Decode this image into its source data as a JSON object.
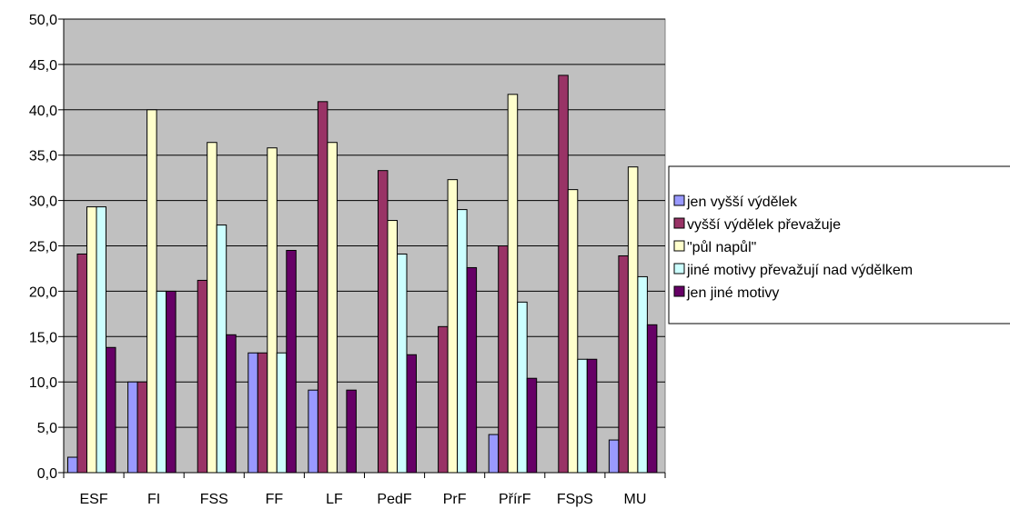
{
  "chart_data": {
    "type": "bar",
    "categories": [
      "ESF",
      "FI",
      "FSS",
      "FF",
      "LF",
      "PedF",
      "PrF",
      "PřírF",
      "FSpS",
      "MU"
    ],
    "series": [
      {
        "name": "jen vyšší výdělek",
        "color": "#9999ff",
        "values": [
          1.7,
          10.0,
          0.0,
          13.2,
          9.1,
          0.0,
          0.0,
          4.2,
          0.0,
          3.6
        ]
      },
      {
        "name": "vyšší výdělek převažuje",
        "color": "#993366",
        "values": [
          24.1,
          10.0,
          21.2,
          13.2,
          40.9,
          33.3,
          16.1,
          25.0,
          43.8,
          23.9
        ]
      },
      {
        "name": "\"půl napůl\"",
        "color": "#ffffcc",
        "values": [
          29.3,
          40.0,
          36.4,
          35.8,
          36.4,
          27.8,
          32.3,
          41.7,
          31.2,
          33.7
        ]
      },
      {
        "name": "jiné motivy převažují nad výdělkem",
        "color": "#ccffff",
        "values": [
          29.3,
          20.0,
          27.3,
          13.2,
          0.0,
          24.1,
          29.0,
          18.8,
          12.5,
          21.6
        ]
      },
      {
        "name": "jen jiné motivy",
        "color": "#660066",
        "values": [
          13.8,
          20.0,
          15.2,
          24.5,
          9.1,
          13.0,
          22.6,
          10.4,
          12.5,
          16.3
        ]
      }
    ],
    "ylim": [
      0,
      50
    ],
    "yticks": [
      "0,0",
      "5,0",
      "10,0",
      "15,0",
      "20,0",
      "25,0",
      "30,0",
      "35,0",
      "40,0",
      "45,0",
      "50,0"
    ],
    "grid": true,
    "plot_background": "#c0c0c0",
    "legend_position": "right"
  }
}
